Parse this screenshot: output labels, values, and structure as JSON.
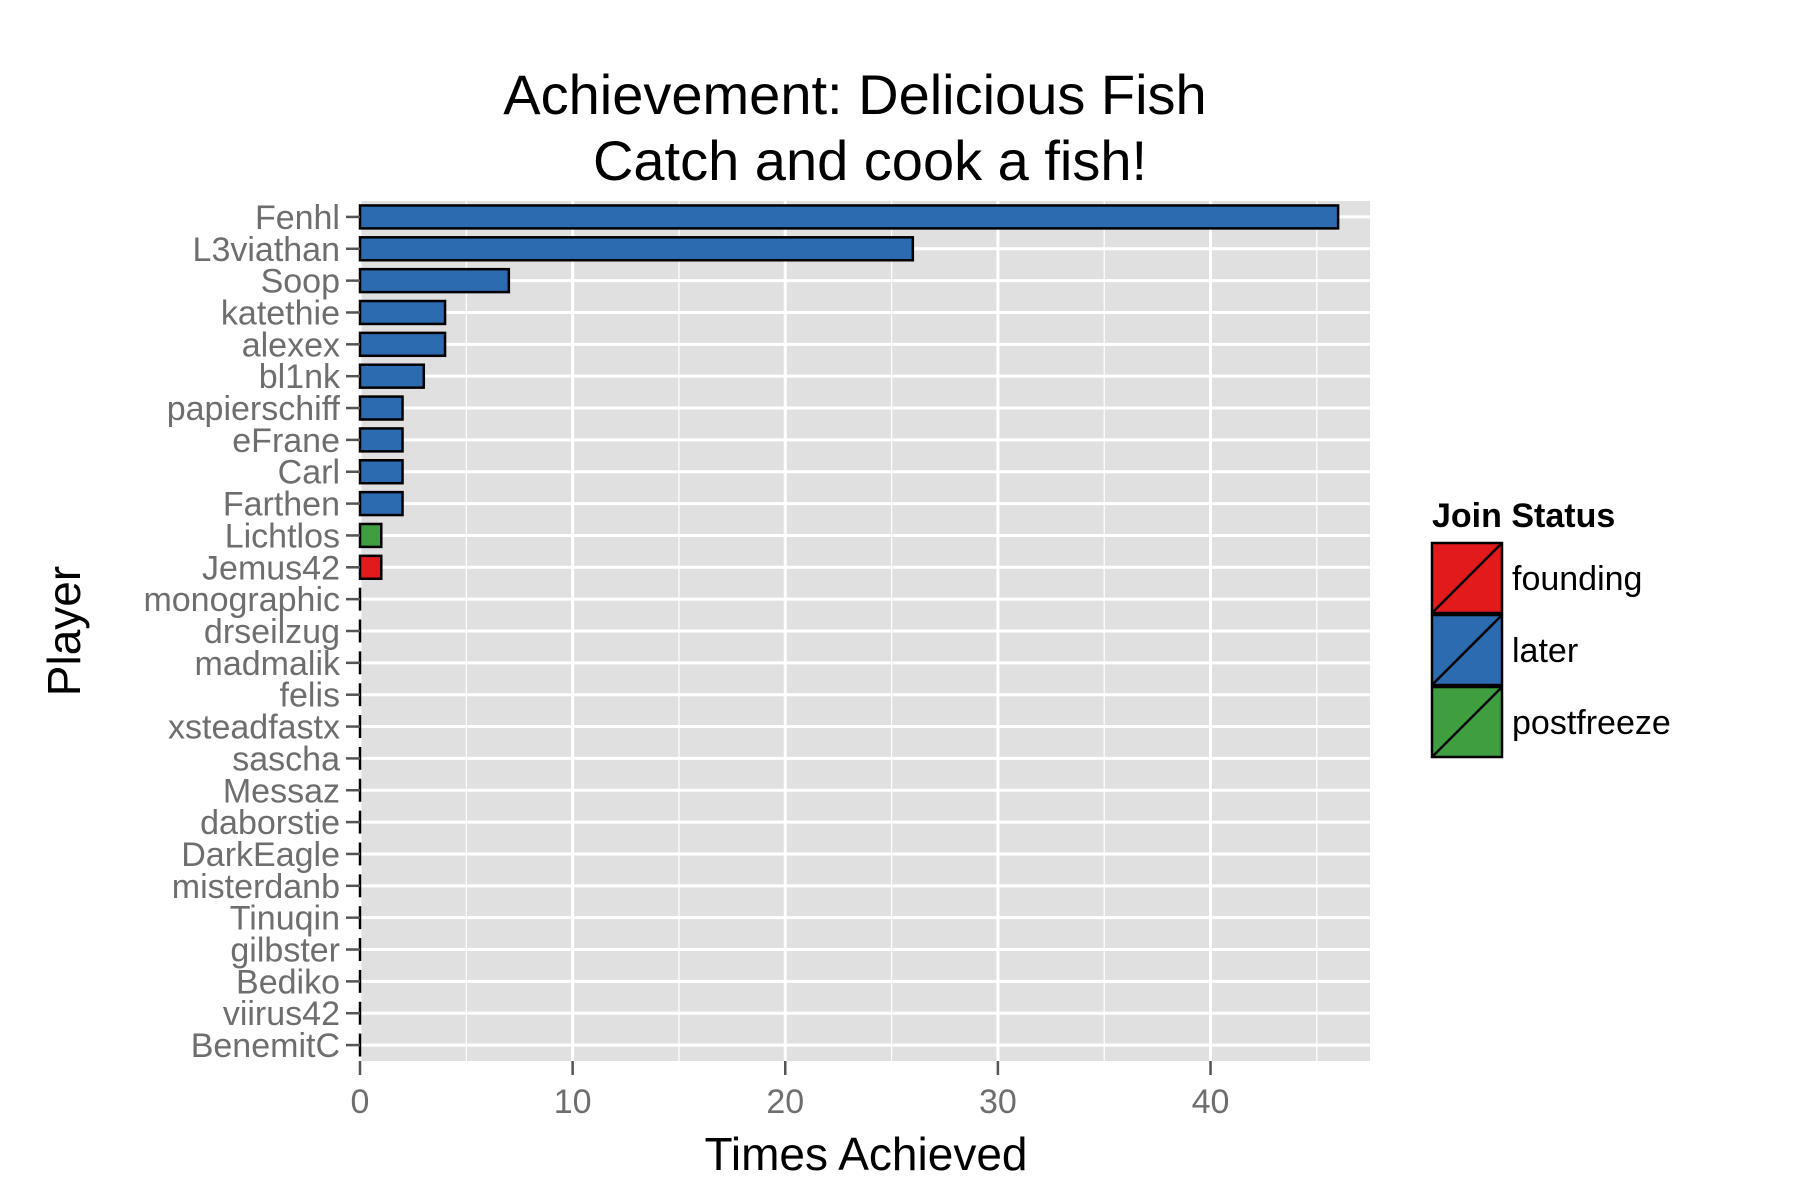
{
  "chart_data": {
    "type": "bar",
    "orientation": "horizontal",
    "title": "Achievement: Delicious Fish",
    "subtitle": "Catch and cook a fish!",
    "xlabel": "Times Achieved",
    "ylabel": "Player",
    "xlim": [
      0,
      47.5
    ],
    "x_ticks": [
      0,
      10,
      20,
      30,
      40
    ],
    "grid": true,
    "legend": {
      "title": "Join Status",
      "position": "right",
      "entries": [
        {
          "label": "founding",
          "color": "#e31a1c"
        },
        {
          "label": "later",
          "color": "#2c6bb0"
        },
        {
          "label": "postfreeze",
          "color": "#3f9e3f"
        }
      ]
    },
    "categories": [
      "Fenhl",
      "L3viathan",
      "Soop",
      "katethie",
      "alexex",
      "bl1nk",
      "papierschiff",
      "eFrane",
      "Carl",
      "Farthen",
      "Lichtlos",
      "Jemus42",
      "monographic",
      "drseilzug",
      "madmalik",
      "felis",
      "xsteadfastx",
      "sascha",
      "Messaz",
      "daborstie",
      "DarkEagle",
      "misterdanb",
      "Tinuqin",
      "gilbster",
      "Bediko",
      "viirus42",
      "BenemitC"
    ],
    "values": [
      46,
      26,
      7,
      4,
      4,
      3,
      2,
      2,
      2,
      2,
      1,
      1,
      0,
      0,
      0,
      0,
      0,
      0,
      0,
      0,
      0,
      0,
      0,
      0,
      0,
      0,
      0
    ],
    "groups": [
      "later",
      "later",
      "later",
      "later",
      "later",
      "later",
      "later",
      "later",
      "later",
      "later",
      "postfreeze",
      "founding",
      "",
      "",
      "",
      "",
      "",
      "",
      "",
      "",
      "",
      "",
      "",
      "",
      "",
      "",
      ""
    ]
  },
  "colors": {
    "panel_background": "#e0e0e0",
    "grid": "#ffffff",
    "bar_outline": "#000000",
    "tick_text": "#6e6e6e"
  }
}
